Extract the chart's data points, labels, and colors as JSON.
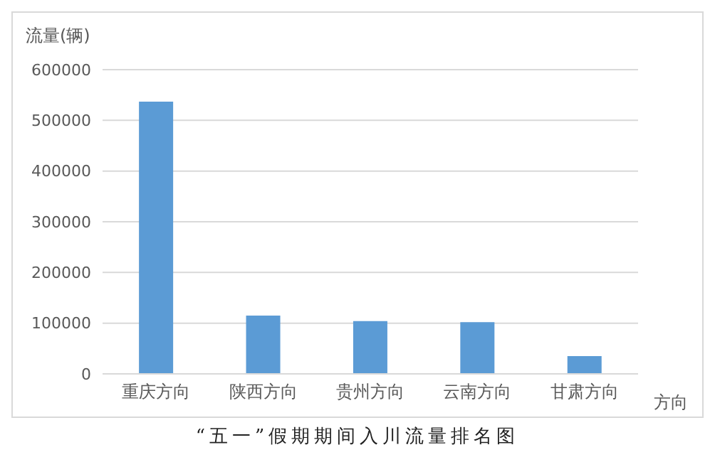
{
  "chart_data": {
    "type": "bar",
    "title": "“五一”假期期间入川流量排名图",
    "ylabel": "流量(辆)",
    "xlabel": "方向",
    "categories": [
      "重庆方向",
      "陕西方向",
      "贵州方向",
      "云南方向",
      "甘肃方向"
    ],
    "values": [
      537000,
      115000,
      104000,
      102000,
      35000
    ],
    "color": "#5b9bd5",
    "ylim": [
      0,
      600000
    ],
    "yticks": [
      0,
      100000,
      200000,
      300000,
      400000,
      500000,
      600000
    ],
    "grid": "y"
  }
}
